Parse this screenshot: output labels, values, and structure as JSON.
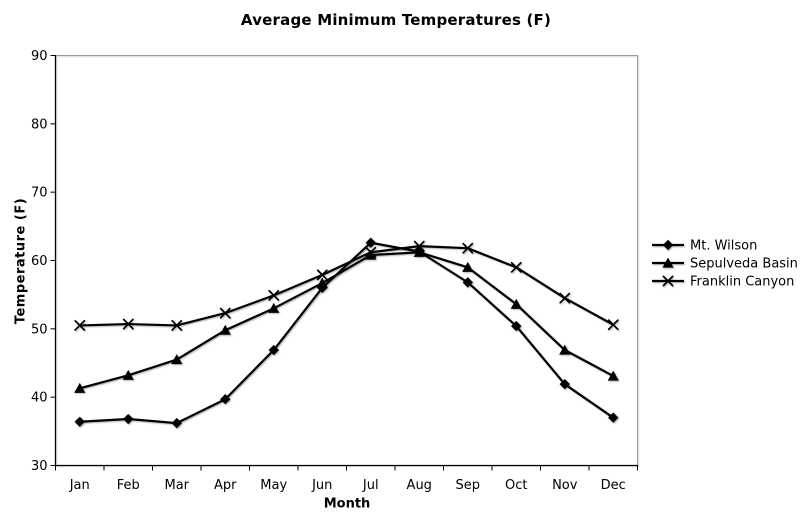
{
  "chart_data": {
    "type": "line",
    "title": "Average Minimum Temperatures (F)",
    "xlabel": "Month",
    "ylabel": "Temperature (F)",
    "categories": [
      "Jan",
      "Feb",
      "Mar",
      "Apr",
      "May",
      "Jun",
      "Jul",
      "Aug",
      "Sep",
      "Oct",
      "Nov",
      "Dec"
    ],
    "series": [
      {
        "name": "Mt. Wilson",
        "marker": "diamond",
        "values": [
          36.4,
          36.8,
          36.2,
          39.7,
          46.9,
          56.0,
          62.6,
          61.3,
          56.8,
          50.4,
          41.9,
          37.0
        ]
      },
      {
        "name": "Sepulveda Basin",
        "marker": "triangle",
        "values": [
          41.3,
          43.2,
          45.5,
          49.8,
          53.0,
          56.7,
          60.8,
          61.2,
          59.0,
          53.6,
          46.9,
          43.1
        ]
      },
      {
        "name": "Franklin Canyon",
        "marker": "x",
        "values": [
          50.5,
          50.7,
          50.5,
          52.3,
          54.9,
          57.9,
          61.2,
          62.1,
          61.8,
          59.0,
          54.5,
          50.6
        ]
      }
    ],
    "ylim": [
      30,
      90
    ],
    "yticks": [
      30,
      40,
      50,
      60,
      70,
      80,
      90
    ],
    "grid": false,
    "legend_position": "right",
    "colors": {
      "series": "#000000",
      "axis": "#000000",
      "plot_border": "#9b9b9b",
      "background": "#ffffff",
      "text": "#000000"
    }
  }
}
